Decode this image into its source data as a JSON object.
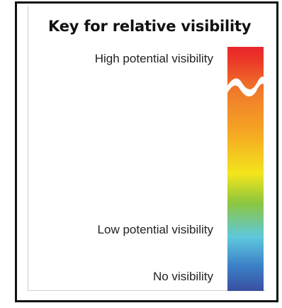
{
  "legend": {
    "title": "Key for relative visibility",
    "labels": {
      "high": "High potential visibility",
      "low": "Low potential visibility",
      "none": "No visibility"
    },
    "color_ramp": {
      "description_colors": [
        "#e8262a",
        "#f07a2a",
        "#f5a623",
        "#f3e51c",
        "#8cc63f",
        "#5ec8dd",
        "#3b6cc0",
        "#3a4fa0"
      ],
      "break_icon": "scale-break-icon"
    }
  }
}
